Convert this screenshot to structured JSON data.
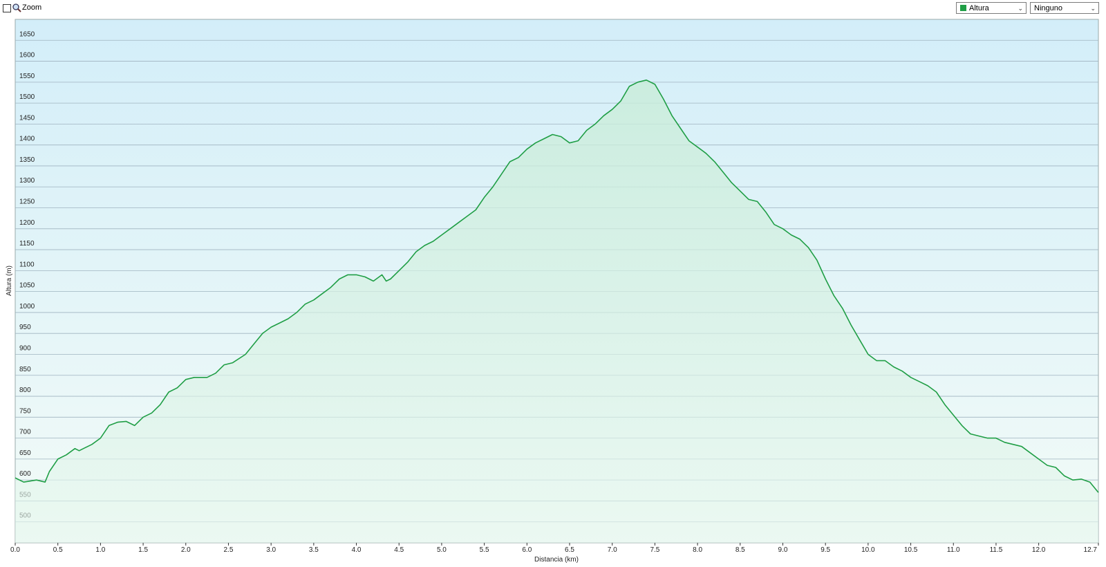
{
  "toolbar": {
    "zoom_label": "Zoom",
    "secondary_select": "Ninguno"
  },
  "chart_data": {
    "type": "line",
    "x_label": "Distancia  (km)",
    "y_label": "Altura (m)",
    "x": [
      0,
      0.1,
      0.25,
      0.35,
      0.4,
      0.5,
      0.6,
      0.7,
      0.75,
      0.8,
      0.9,
      1.0,
      1.1,
      1.2,
      1.3,
      1.4,
      1.5,
      1.6,
      1.7,
      1.8,
      1.9,
      2.0,
      2.1,
      2.25,
      2.35,
      2.45,
      2.55,
      2.7,
      2.8,
      2.9,
      3.0,
      3.1,
      3.2,
      3.3,
      3.4,
      3.5,
      3.6,
      3.7,
      3.8,
      3.9,
      4.0,
      4.1,
      4.2,
      4.3,
      4.35,
      4.4,
      4.5,
      4.6,
      4.7,
      4.8,
      4.9,
      5.0,
      5.1,
      5.2,
      5.3,
      5.4,
      5.5,
      5.6,
      5.7,
      5.8,
      5.9,
      6.0,
      6.1,
      6.2,
      6.3,
      6.4,
      6.5,
      6.6,
      6.7,
      6.8,
      6.9,
      7.0,
      7.1,
      7.2,
      7.3,
      7.4,
      7.5,
      7.6,
      7.7,
      7.8,
      7.9,
      8.0,
      8.1,
      8.2,
      8.3,
      8.4,
      8.5,
      8.6,
      8.7,
      8.8,
      8.9,
      9.0,
      9.1,
      9.2,
      9.3,
      9.4,
      9.5,
      9.6,
      9.7,
      9.8,
      9.9,
      10.0,
      10.1,
      10.2,
      10.3,
      10.4,
      10.5,
      10.6,
      10.7,
      10.8,
      10.9,
      11.0,
      11.1,
      11.2,
      11.3,
      11.4,
      11.5,
      11.6,
      11.7,
      11.8,
      11.9,
      12.0,
      12.1,
      12.2,
      12.3,
      12.4,
      12.5,
      12.6,
      12.7
    ],
    "series": [
      {
        "name": "Altura",
        "color": "#1f9e45",
        "values": [
          605,
          595,
          600,
          595,
          620,
          650,
          660,
          675,
          670,
          675,
          685,
          700,
          730,
          738,
          740,
          730,
          750,
          760,
          780,
          810,
          820,
          840,
          845,
          845,
          855,
          875,
          880,
          900,
          925,
          950,
          965,
          975,
          985,
          1000,
          1020,
          1030,
          1045,
          1060,
          1080,
          1090,
          1090,
          1085,
          1075,
          1090,
          1075,
          1080,
          1100,
          1120,
          1145,
          1160,
          1170,
          1185,
          1200,
          1215,
          1230,
          1245,
          1275,
          1300,
          1330,
          1360,
          1370,
          1390,
          1405,
          1415,
          1425,
          1420,
          1405,
          1410,
          1435,
          1450,
          1470,
          1485,
          1505,
          1540,
          1550,
          1555,
          1545,
          1510,
          1470,
          1440,
          1410,
          1395,
          1380,
          1360,
          1335,
          1310,
          1290,
          1270,
          1265,
          1240,
          1210,
          1200,
          1185,
          1175,
          1155,
          1125,
          1080,
          1040,
          1010,
          970,
          935,
          900,
          885,
          885,
          870,
          860,
          845,
          835,
          825,
          810,
          780,
          755,
          730,
          710,
          705,
          700,
          700,
          690,
          685,
          680,
          665,
          650,
          635,
          630,
          610,
          600,
          602,
          595,
          570
        ]
      }
    ],
    "xlim": [
      0,
      12.7
    ],
    "ylim": [
      450,
      1700
    ],
    "xticks": [
      {
        "value": 0,
        "label": "0.0"
      },
      0.5,
      {
        "value": 1,
        "label": "1.0"
      },
      1.5,
      {
        "value": 2,
        "label": "2.0"
      },
      2.5,
      {
        "value": 3,
        "label": "3.0"
      },
      3.5,
      {
        "value": 4,
        "label": "4.0"
      },
      4.5,
      {
        "value": 5,
        "label": "5.0"
      },
      5.5,
      {
        "value": 6,
        "label": "6.0"
      },
      6.5,
      {
        "value": 7,
        "label": "7.0"
      },
      7.5,
      {
        "value": 8,
        "label": "8.0"
      },
      8.5,
      {
        "value": 9,
        "label": "9.0"
      },
      9.5,
      {
        "value": 10,
        "label": "10.0"
      },
      10.5,
      {
        "value": 11,
        "label": "11.0"
      },
      11.5,
      {
        "value": 12,
        "label": "12.0"
      },
      12.7
    ],
    "yticks": [
      500,
      550,
      600,
      650,
      700,
      750,
      800,
      850,
      900,
      950,
      1000,
      1050,
      1100,
      1150,
      1200,
      1250,
      1300,
      1350,
      1400,
      1450,
      1500,
      1550,
      1600,
      1650
    ],
    "grid": true
  }
}
